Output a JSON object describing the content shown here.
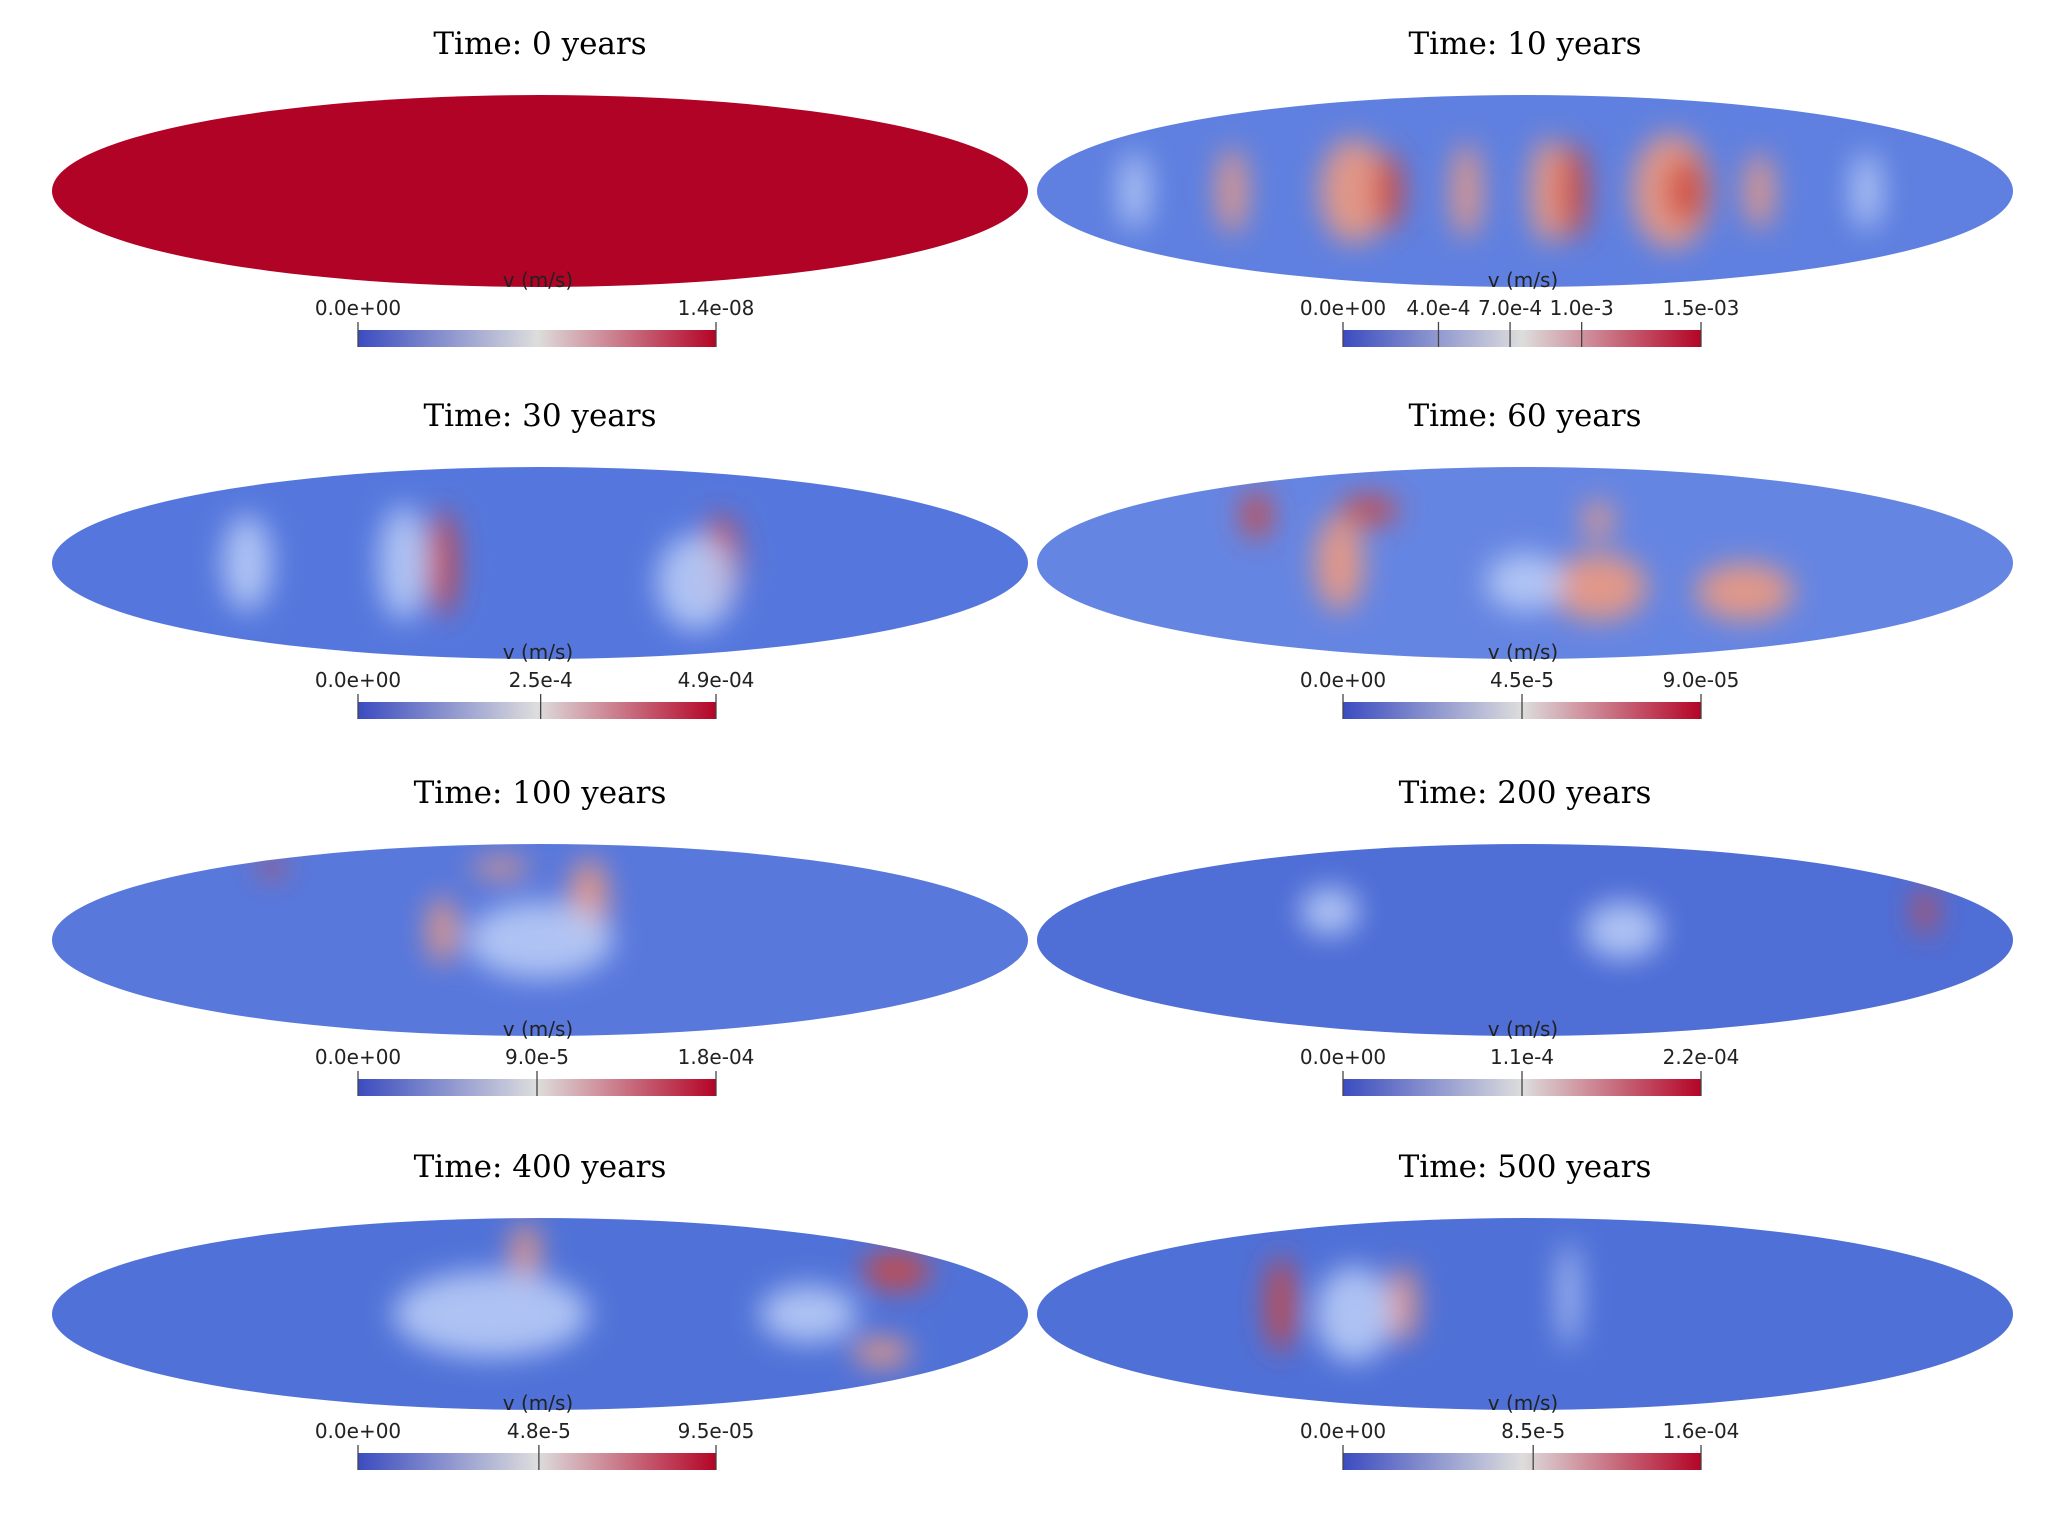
{
  "chart_data": [
    {
      "type": "colorbar",
      "title": "Time: 0 years",
      "label": "v (m/s)",
      "colormap": [
        "#3b4cc0",
        "#dddddd",
        "#b40426"
      ],
      "xlim": [
        0,
        1.4e-08
      ],
      "xticks": [
        {
          "value": 0,
          "label": "0.0e+00"
        },
        {
          "value": 1.4e-08,
          "label": "1.4e-08"
        }
      ]
    },
    {
      "type": "colorbar",
      "title": "Time: 10 years",
      "label": "v (m/s)",
      "colormap": [
        "#3b4cc0",
        "#dddddd",
        "#b40426"
      ],
      "xlim": [
        0,
        0.0015
      ],
      "xticks": [
        {
          "value": 0,
          "label": "0.0e+00"
        },
        {
          "value": 0.0004,
          "label": "4.0e-4"
        },
        {
          "value": 0.0007,
          "label": "7.0e-4"
        },
        {
          "value": 0.001,
          "label": "1.0e-3"
        },
        {
          "value": 0.0015,
          "label": "1.5e-03"
        }
      ]
    },
    {
      "type": "colorbar",
      "title": "Time: 30 years",
      "label": "v (m/s)",
      "colormap": [
        "#3b4cc0",
        "#dddddd",
        "#b40426"
      ],
      "xlim": [
        0,
        0.00049
      ],
      "xticks": [
        {
          "value": 0,
          "label": "0.0e+00"
        },
        {
          "value": 0.00025,
          "label": "2.5e-4"
        },
        {
          "value": 0.00049,
          "label": "4.9e-04"
        }
      ]
    },
    {
      "type": "colorbar",
      "title": "Time: 60 years",
      "label": "v (m/s)",
      "colormap": [
        "#3b4cc0",
        "#dddddd",
        "#b40426"
      ],
      "xlim": [
        0,
        9e-05
      ],
      "xticks": [
        {
          "value": 0,
          "label": "0.0e+00"
        },
        {
          "value": 4.5e-05,
          "label": "4.5e-5"
        },
        {
          "value": 9e-05,
          "label": "9.0e-05"
        }
      ]
    },
    {
      "type": "colorbar",
      "title": "Time: 100 years",
      "label": "v (m/s)",
      "colormap": [
        "#3b4cc0",
        "#dddddd",
        "#b40426"
      ],
      "xlim": [
        0,
        0.00018
      ],
      "xticks": [
        {
          "value": 0,
          "label": "0.0e+00"
        },
        {
          "value": 9e-05,
          "label": "9.0e-5"
        },
        {
          "value": 0.00018,
          "label": "1.8e-04"
        }
      ]
    },
    {
      "type": "colorbar",
      "title": "Time: 200 years",
      "label": "v (m/s)",
      "colormap": [
        "#3b4cc0",
        "#dddddd",
        "#b40426"
      ],
      "xlim": [
        0,
        0.00022
      ],
      "xticks": [
        {
          "value": 0,
          "label": "0.0e+00"
        },
        {
          "value": 0.00011,
          "label": "1.1e-4"
        },
        {
          "value": 0.00022,
          "label": "2.2e-04"
        }
      ]
    },
    {
      "type": "colorbar",
      "title": "Time: 400 years",
      "label": "v (m/s)",
      "colormap": [
        "#3b4cc0",
        "#dddddd",
        "#b40426"
      ],
      "xlim": [
        0,
        9.5e-05
      ],
      "xticks": [
        {
          "value": 0,
          "label": "0.0e+00"
        },
        {
          "value": 4.8e-05,
          "label": "4.8e-5"
        },
        {
          "value": 9.5e-05,
          "label": "9.5e-05"
        }
      ]
    },
    {
      "type": "colorbar",
      "title": "Time: 500 years",
      "label": "v (m/s)",
      "colormap": [
        "#3b4cc0",
        "#dddddd",
        "#b40426"
      ],
      "xlim": [
        0,
        0.00016
      ],
      "xticks": [
        {
          "value": 0,
          "label": "0.0e+00"
        },
        {
          "value": 8.5e-05,
          "label": "8.5e-5"
        },
        {
          "value": 0.00016,
          "label": "1.6e-04"
        }
      ]
    }
  ]
}
